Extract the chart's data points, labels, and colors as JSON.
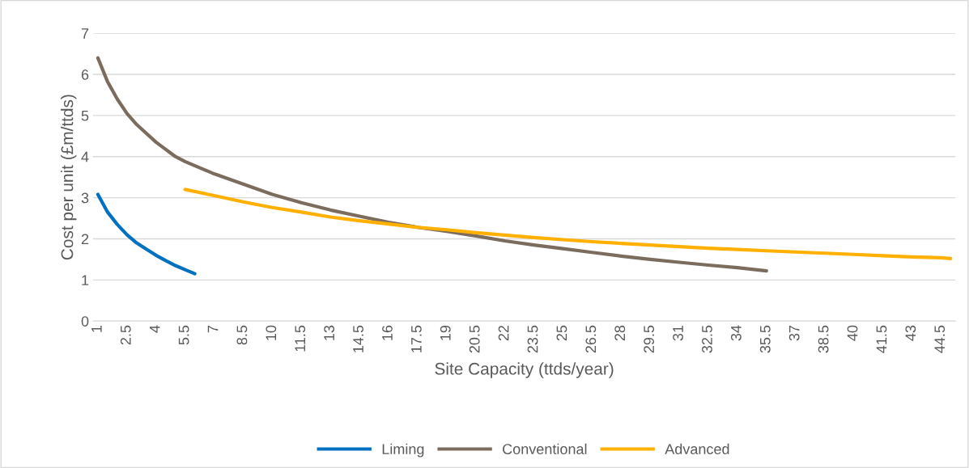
{
  "chart_data": {
    "type": "line",
    "xlabel": "Site Capacity (ttds/year)",
    "ylabel": "Cost per unit (£m/ttds)",
    "xlim": [
      0.75,
      45.25
    ],
    "xticks": [
      1,
      2.5,
      4,
      5.5,
      7,
      8.5,
      10,
      11.5,
      13,
      14.5,
      16,
      17.5,
      19,
      20.5,
      22,
      23.5,
      25,
      26.5,
      28,
      29.5,
      31,
      32.5,
      34,
      35.5,
      37,
      38.5,
      40,
      41.5,
      43,
      44.5
    ],
    "ylim": [
      0,
      7
    ],
    "yticks": [
      0,
      1,
      2,
      3,
      4,
      5,
      6,
      7
    ],
    "grid": "y",
    "legend": "bottom",
    "marker": "none",
    "line_style": "solid",
    "series": [
      {
        "name": "Liming",
        "color": "#0070c0",
        "x": [
          1,
          1.5,
          2,
          2.5,
          3,
          3.5,
          4,
          4.5,
          5,
          5.5,
          6
        ],
        "values": [
          3.08,
          2.65,
          2.35,
          2.1,
          1.9,
          1.75,
          1.6,
          1.47,
          1.35,
          1.25,
          1.15
        ]
      },
      {
        "name": "Conventional",
        "color": "#7b6c5e",
        "x": [
          1,
          1.5,
          2,
          2.5,
          3,
          4,
          5,
          5.5,
          7,
          8.5,
          10,
          11.5,
          13,
          14.5,
          16,
          17.5,
          19,
          20.5,
          22,
          23.5,
          25,
          26.5,
          28,
          29.5,
          31,
          32.5,
          34,
          35.5
        ],
        "values": [
          6.4,
          5.82,
          5.4,
          5.05,
          4.78,
          4.35,
          4.0,
          3.88,
          3.58,
          3.33,
          3.08,
          2.88,
          2.7,
          2.55,
          2.4,
          2.28,
          2.18,
          2.07,
          1.95,
          1.85,
          1.76,
          1.67,
          1.58,
          1.5,
          1.43,
          1.36,
          1.3,
          1.22
        ]
      },
      {
        "name": "Advanced",
        "color": "#ffb000",
        "x": [
          5.5,
          7,
          8.5,
          10,
          11.5,
          13,
          14.5,
          16,
          17.5,
          19,
          20.5,
          22,
          23.5,
          25,
          26.5,
          28,
          29.5,
          31,
          32.5,
          34,
          35.5,
          37,
          38.5,
          40,
          41.5,
          43,
          44.5,
          45
        ],
        "values": [
          3.2,
          3.05,
          2.9,
          2.76,
          2.65,
          2.53,
          2.44,
          2.36,
          2.28,
          2.22,
          2.15,
          2.09,
          2.03,
          1.98,
          1.93,
          1.89,
          1.85,
          1.81,
          1.77,
          1.74,
          1.71,
          1.68,
          1.65,
          1.62,
          1.59,
          1.56,
          1.54,
          1.52
        ]
      }
    ]
  }
}
